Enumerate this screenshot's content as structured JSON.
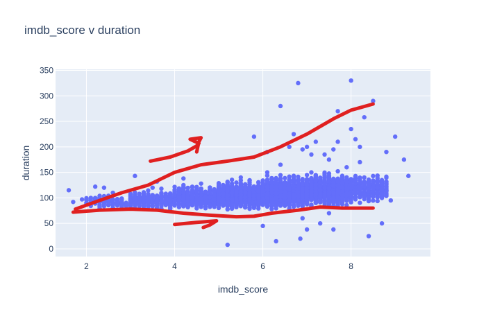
{
  "chart_data": {
    "type": "scatter",
    "title": "imdb_score v duration",
    "xlabel": "imdb_score",
    "ylabel": "duration",
    "xlim": [
      1.3,
      9.8
    ],
    "ylim": [
      -15,
      352
    ],
    "x_ticks": [
      2,
      4,
      6,
      8
    ],
    "y_ticks": [
      0,
      50,
      100,
      150,
      200,
      250,
      300,
      350
    ],
    "grid": true,
    "legend": "none",
    "colors": {
      "marker": "#636efa",
      "plot_bg": "#e5ecf6",
      "grid": "#ffffff",
      "annotation": "#e02020"
    },
    "series": [
      {
        "name": "",
        "points": [
          [
            1.6,
            115
          ],
          [
            1.7,
            92
          ],
          [
            1.9,
            97
          ],
          [
            2.0,
            90
          ],
          [
            2.1,
            100
          ],
          [
            2.1,
            93
          ],
          [
            2.2,
            122
          ],
          [
            2.3,
            95
          ],
          [
            2.4,
            120
          ],
          [
            2.5,
            90
          ],
          [
            2.6,
            97
          ],
          [
            2.7,
            88
          ],
          [
            2.8,
            92
          ],
          [
            2.9,
            85
          ],
          [
            3.0,
            95
          ],
          [
            3.1,
            143
          ],
          [
            3.2,
            90
          ],
          [
            3.3,
            100
          ],
          [
            3.4,
            88
          ],
          [
            3.5,
            120
          ],
          [
            3.6,
            132
          ],
          [
            3.6,
            95
          ],
          [
            3.8,
            108
          ],
          [
            3.9,
            85
          ],
          [
            4.0,
            95
          ],
          [
            4.1,
            115
          ],
          [
            4.2,
            125
          ],
          [
            4.3,
            100
          ],
          [
            4.4,
            112
          ],
          [
            4.5,
            90
          ],
          [
            4.6,
            128
          ],
          [
            4.7,
            102
          ],
          [
            4.9,
            115
          ],
          [
            5.0,
            125
          ],
          [
            5.1,
            98
          ],
          [
            5.2,
            8
          ],
          [
            5.3,
            110
          ],
          [
            5.4,
            130
          ],
          [
            5.5,
            100
          ],
          [
            5.6,
            118
          ],
          [
            5.7,
            105
          ],
          [
            5.8,
            220
          ],
          [
            5.9,
            130
          ],
          [
            6.0,
            45
          ],
          [
            6.1,
            150
          ],
          [
            6.2,
            110
          ],
          [
            6.3,
            15
          ],
          [
            6.4,
            280
          ],
          [
            6.5,
            120
          ],
          [
            6.6,
            200
          ],
          [
            6.7,
            225
          ],
          [
            6.8,
            95
          ],
          [
            6.9,
            60
          ],
          [
            7.0,
            200
          ],
          [
            7.1,
            150
          ],
          [
            7.2,
            210
          ],
          [
            7.3,
            130
          ],
          [
            7.4,
            185
          ],
          [
            7.5,
            70
          ],
          [
            7.6,
            195
          ],
          [
            7.7,
            270
          ],
          [
            7.8,
            100
          ],
          [
            7.9,
            160
          ],
          [
            8.0,
            330
          ],
          [
            8.1,
            215
          ],
          [
            8.2,
            170
          ],
          [
            8.3,
            140
          ],
          [
            8.4,
            25
          ],
          [
            8.5,
            290
          ],
          [
            8.6,
            120
          ],
          [
            8.8,
            190
          ],
          [
            8.9,
            95
          ],
          [
            9.0,
            220
          ],
          [
            9.2,
            175
          ],
          [
            9.3,
            143
          ],
          [
            6.8,
            325
          ],
          [
            6.85,
            20
          ],
          [
            7.0,
            38
          ],
          [
            8.3,
            258
          ],
          [
            8.0,
            235
          ],
          [
            7.7,
            210
          ],
          [
            7.3,
            50
          ],
          [
            7.6,
            38
          ],
          [
            8.7,
            50
          ],
          [
            5.5,
            140
          ],
          [
            5.2,
            130
          ],
          [
            6.1,
            190
          ],
          [
            6.9,
            195
          ],
          [
            7.5,
            175
          ],
          [
            8.2,
            200
          ],
          [
            4.8,
            120
          ],
          [
            4.2,
            138
          ],
          [
            3.7,
            118
          ],
          [
            2.6,
            110
          ],
          [
            6.4,
            165
          ],
          [
            7.1,
            185
          ]
        ]
      }
    ],
    "density_bands": [
      {
        "x0": 2.0,
        "x1": 3.0,
        "y_center": 92,
        "y_spread": 18,
        "count": 120
      },
      {
        "x0": 3.0,
        "x1": 4.0,
        "y_center": 96,
        "y_spread": 24,
        "count": 300
      },
      {
        "x0": 4.0,
        "x1": 5.0,
        "y_center": 100,
        "y_spread": 30,
        "count": 600
      },
      {
        "x0": 5.0,
        "x1": 6.0,
        "y_center": 105,
        "y_spread": 36,
        "count": 1000
      },
      {
        "x0": 6.0,
        "x1": 7.0,
        "y_center": 110,
        "y_spread": 40,
        "count": 1500
      },
      {
        "x0": 7.0,
        "x1": 8.0,
        "y_center": 115,
        "y_spread": 42,
        "count": 1200
      },
      {
        "x0": 8.0,
        "x1": 8.8,
        "y_center": 118,
        "y_spread": 38,
        "count": 350
      }
    ],
    "annotations": [
      {
        "name": "upper-envelope",
        "points": [
          [
            1.75,
            78
          ],
          [
            2.2,
            92
          ],
          [
            2.8,
            110
          ],
          [
            3.4,
            125
          ],
          [
            4.0,
            150
          ],
          [
            4.6,
            165
          ],
          [
            5.2,
            172
          ],
          [
            5.8,
            180
          ],
          [
            6.4,
            200
          ],
          [
            7.0,
            225
          ],
          [
            7.6,
            255
          ],
          [
            8.0,
            272
          ],
          [
            8.5,
            284
          ]
        ]
      },
      {
        "name": "lower-envelope",
        "points": [
          [
            1.7,
            72
          ],
          [
            2.3,
            76
          ],
          [
            3.0,
            78
          ],
          [
            3.6,
            76
          ],
          [
            4.2,
            70
          ],
          [
            4.8,
            66
          ],
          [
            5.4,
            63
          ],
          [
            5.8,
            64
          ],
          [
            6.2,
            70
          ],
          [
            6.8,
            76
          ],
          [
            7.3,
            82
          ],
          [
            7.8,
            80
          ],
          [
            8.5,
            80
          ]
        ]
      },
      {
        "name": "upper-arrow",
        "points": [
          [
            3.45,
            172
          ],
          [
            3.9,
            180
          ],
          [
            4.3,
            192
          ],
          [
            4.5,
            202
          ],
          [
            4.55,
            207
          ],
          [
            4.35,
            215
          ],
          [
            4.6,
            218
          ],
          [
            4.55,
            210
          ],
          [
            4.5,
            190
          ]
        ]
      },
      {
        "name": "lower-arrow",
        "points": [
          [
            4.0,
            48
          ],
          [
            4.5,
            52
          ],
          [
            4.95,
            55
          ],
          [
            4.8,
            47
          ],
          [
            4.65,
            42
          ]
        ]
      }
    ]
  }
}
